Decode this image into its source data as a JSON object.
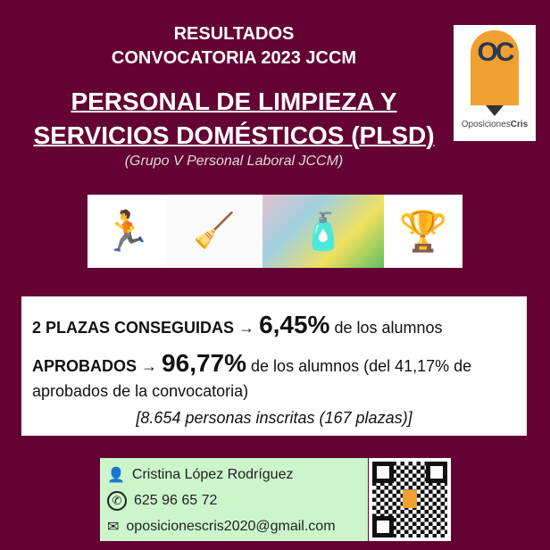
{
  "header": {
    "line1": "RESULTADOS",
    "line2": "CONVOCATORIA 2023 JCCM",
    "title1": "PERSONAL DE LIMPIEZA Y",
    "title2": "SERVICIOS DOMÉSTICOS (PLSD)",
    "subtitle": "(Grupo V Personal Laboral JCCM)"
  },
  "logo": {
    "text_a": "Oposiciones",
    "text_b": "Cris",
    "glyph": "OC"
  },
  "results": {
    "r1_bold": "2 PLAZAS CONSEGUIDAS",
    "arrow": "→",
    "r1_pct": "6,45%",
    "r1_rest": "de los alumnos",
    "r2_bold": "APROBADOS",
    "r2_pct": "96,77%",
    "r2_rest": "de los alumnos (del 41,17% de aprobados de la convocatoria)",
    "note": "[8.654 personas inscritas (167 plazas)]"
  },
  "contact": {
    "name": "Cristina López Rodríguez",
    "phone": "625 96 65 72",
    "email": "oposicionescris2020@gmail.com"
  },
  "colors": {
    "background": "#630233",
    "contact_bg": "#ccf5cc",
    "logo_orange": "#f0a030"
  }
}
